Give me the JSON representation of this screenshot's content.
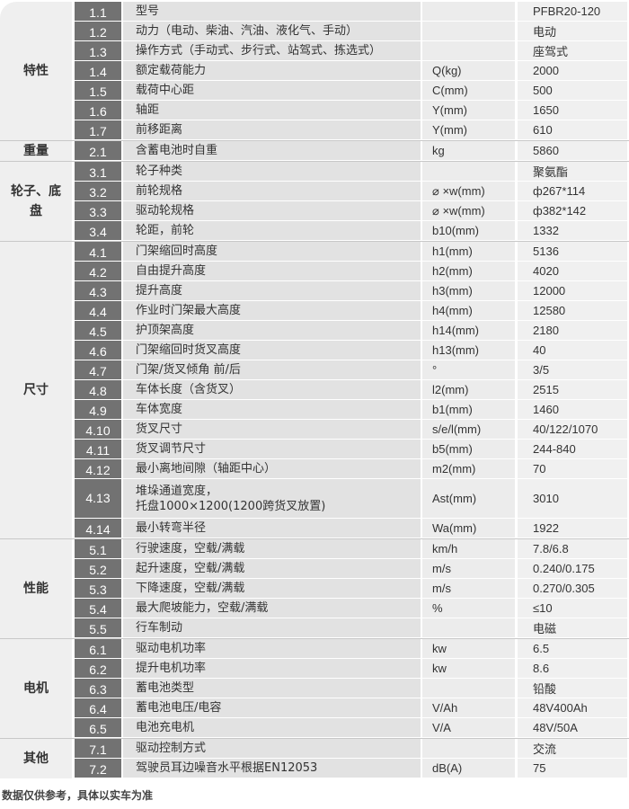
{
  "groups": [
    {
      "category": "特性",
      "rows": [
        {
          "no": "1.1",
          "name": "型号",
          "unit": "",
          "value": "PFBR20-120"
        },
        {
          "no": "1.2",
          "name": "动力（电动、柴油、汽油、液化气、手动）",
          "unit": "",
          "value": "电动"
        },
        {
          "no": "1.3",
          "name": "操作方式（手动式、步行式、站驾式、拣选式）",
          "unit": "",
          "value": "座驾式"
        },
        {
          "no": "1.4",
          "name": "额定载荷能力",
          "unit": "Q(kg)",
          "value": "2000"
        },
        {
          "no": "1.5",
          "name": "载荷中心距",
          "unit": "C(mm)",
          "value": "500"
        },
        {
          "no": "1.6",
          "name": "轴距",
          "unit": "Y(mm)",
          "value": "1650"
        },
        {
          "no": "1.7",
          "name": "前移距离",
          "unit": "Y(mm)",
          "value": "610"
        }
      ]
    },
    {
      "category": "重量",
      "rows": [
        {
          "no": "2.1",
          "name": "含蓄电池时自重",
          "unit": "kg",
          "value": "5860"
        }
      ]
    },
    {
      "category": "轮子、底盘",
      "rows": [
        {
          "no": "3.1",
          "name": "轮子种类",
          "unit": "",
          "value": "聚氨酯"
        },
        {
          "no": "3.2",
          "name": "前轮规格",
          "unit": "⌀ ×w(mm)",
          "value": "ф267*114"
        },
        {
          "no": "3.3",
          "name": "驱动轮规格",
          "unit": "⌀ ×w(mm)",
          "value": "ф382*142"
        },
        {
          "no": "3.4",
          "name": "轮距，前轮",
          "unit": "b10(mm)",
          "value": "1332"
        }
      ]
    },
    {
      "category": "尺寸",
      "rows": [
        {
          "no": "4.1",
          "name": "门架缩回时高度",
          "unit": "h1(mm)",
          "value": "5136"
        },
        {
          "no": "4.2",
          "name": "自由提升高度",
          "unit": "h2(mm)",
          "value": "4020"
        },
        {
          "no": "4.3",
          "name": "提升高度",
          "unit": "h3(mm)",
          "value": "12000"
        },
        {
          "no": "4.4",
          "name": "作业时门架最大高度",
          "unit": "h4(mm)",
          "value": "12580"
        },
        {
          "no": "4.5",
          "name": "护顶架高度",
          "unit": "h14(mm)",
          "value": "2180"
        },
        {
          "no": "4.6",
          "name": "门架缩回时货叉高度",
          "unit": "h13(mm)",
          "value": "40"
        },
        {
          "no": "4.7",
          "name": "门架/货叉倾角 前/后",
          "unit": "°",
          "value": "3/5"
        },
        {
          "no": "4.8",
          "name": "车体长度（含货叉）",
          "unit": "l2(mm)",
          "value": "2515"
        },
        {
          "no": "4.9",
          "name": "车体宽度",
          "unit": "b1(mm)",
          "value": "1460"
        },
        {
          "no": "4.10",
          "name": "货叉尺寸",
          "unit": "s/e/l(mm)",
          "value": "40/122/1070"
        },
        {
          "no": "4.11",
          "name": "货叉调节尺寸",
          "unit": "b5(mm)",
          "value": "244-840"
        },
        {
          "no": "4.12",
          "name": "最小离地间隙（轴距中心）",
          "unit": "m2(mm)",
          "value": "70"
        },
        {
          "no": "4.13",
          "name": "堆垛通道宽度，\n托盘1000×1200(1200跨货叉放置)",
          "unit": "Ast(mm)",
          "value": "3010",
          "tall": true
        },
        {
          "no": "4.14",
          "name": "最小转弯半径",
          "unit": "Wa(mm)",
          "value": "1922"
        }
      ]
    },
    {
      "category": "性能",
      "rows": [
        {
          "no": "5.1",
          "name": "行驶速度，空载/满载",
          "unit": "km/h",
          "value": "7.8/6.8"
        },
        {
          "no": "5.2",
          "name": "起升速度，空载/满载",
          "unit": "m/s",
          "value": "0.240/0.175"
        },
        {
          "no": "5.3",
          "name": "下降速度，空载/满载",
          "unit": "m/s",
          "value": "0.270/0.305"
        },
        {
          "no": "5.4",
          "name": "最大爬坡能力，空载/满载",
          "unit": "%",
          "value": " ≤10"
        },
        {
          "no": "5.5",
          "name": "行车制动",
          "unit": "",
          "value": "电磁"
        }
      ]
    },
    {
      "category": "电机",
      "rows": [
        {
          "no": "6.1",
          "name": "驱动电机功率",
          "unit": "kw",
          "value": "6.5"
        },
        {
          "no": "6.2",
          "name": "提升电机功率",
          "unit": "kw",
          "value": "8.6"
        },
        {
          "no": "6.3",
          "name": "蓄电池类型",
          "unit": "",
          "value": "铅酸"
        },
        {
          "no": "6.4",
          "name": "蓄电池电压/电容",
          "unit": "V/Ah",
          "value": "48V400Ah"
        },
        {
          "no": "6.5",
          "name": "电池充电机",
          "unit": "V/A",
          "value": "48V/50A"
        }
      ]
    },
    {
      "category": "其他",
      "rows": [
        {
          "no": "7.1",
          "name": "驱动控制方式",
          "unit": "",
          "value": "交流"
        },
        {
          "no": "7.2",
          "name": "驾驶员耳边噪音水平根据EN12053",
          "unit": "dB(A)",
          "value": "75"
        }
      ]
    }
  ],
  "footnote": "数据仅供参考，具体以实车为准"
}
